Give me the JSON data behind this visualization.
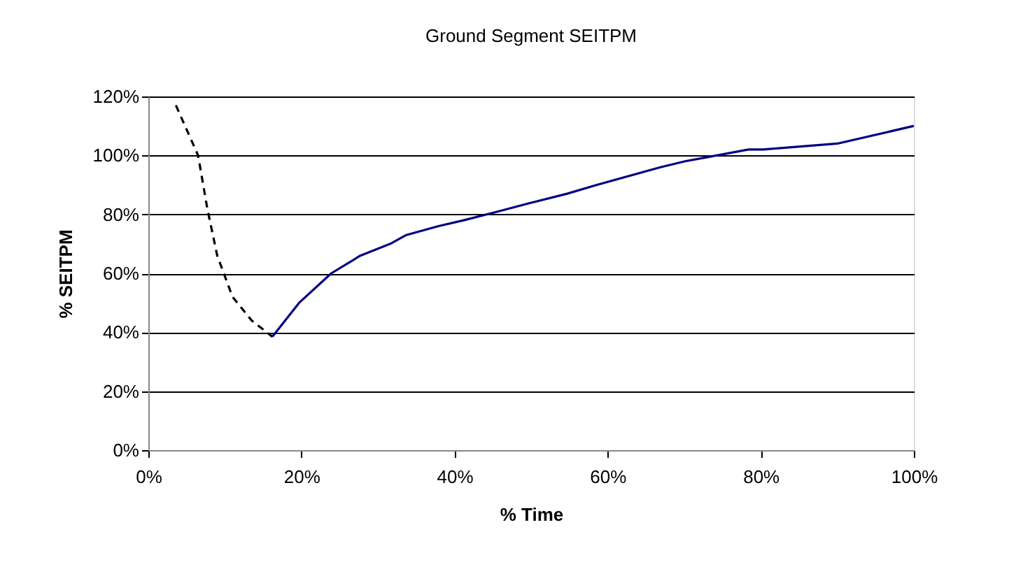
{
  "chart_data": {
    "type": "line",
    "title": "Ground Segment SEITPM",
    "xlabel": "% Time",
    "ylabel": "% SEITPM",
    "xlim": [
      0,
      100
    ],
    "ylim": [
      0,
      120
    ],
    "xticks": [
      {
        "value": 0,
        "label": "0%"
      },
      {
        "value": 20,
        "label": "20%"
      },
      {
        "value": 40,
        "label": "40%"
      },
      {
        "value": 60,
        "label": "60%"
      },
      {
        "value": 80,
        "label": "80%"
      },
      {
        "value": 100,
        "label": "100%"
      }
    ],
    "yticks": [
      {
        "value": 0,
        "label": "0%"
      },
      {
        "value": 20,
        "label": "20%"
      },
      {
        "value": 40,
        "label": "40%"
      },
      {
        "value": 60,
        "label": "60%"
      },
      {
        "value": 80,
        "label": "80%"
      },
      {
        "value": 100,
        "label": "100%"
      },
      {
        "value": 120,
        "label": "120%"
      }
    ],
    "grid": "y",
    "marker": "none",
    "series": [
      {
        "color": "#000000",
        "line_style": "dashed",
        "x": [
          3.6,
          6.5,
          7.7,
          9.0,
          11.0,
          13.5,
          16.2
        ],
        "values": [
          117,
          100,
          82,
          66,
          52,
          44,
          38.5
        ]
      },
      {
        "color": "#000080",
        "line_style": "solid",
        "x": [
          16.2,
          19.7,
          23.9,
          27.7,
          31.6,
          33.7,
          37.9,
          41.2,
          45.7,
          50.1,
          54.7,
          58.6,
          66.9,
          70.1,
          78.4,
          80.3,
          90.0,
          100
        ],
        "values": [
          38.5,
          50,
          60,
          66,
          70,
          73,
          76,
          78,
          81,
          84,
          87,
          90,
          96,
          98,
          102,
          102,
          104,
          110
        ]
      }
    ]
  }
}
